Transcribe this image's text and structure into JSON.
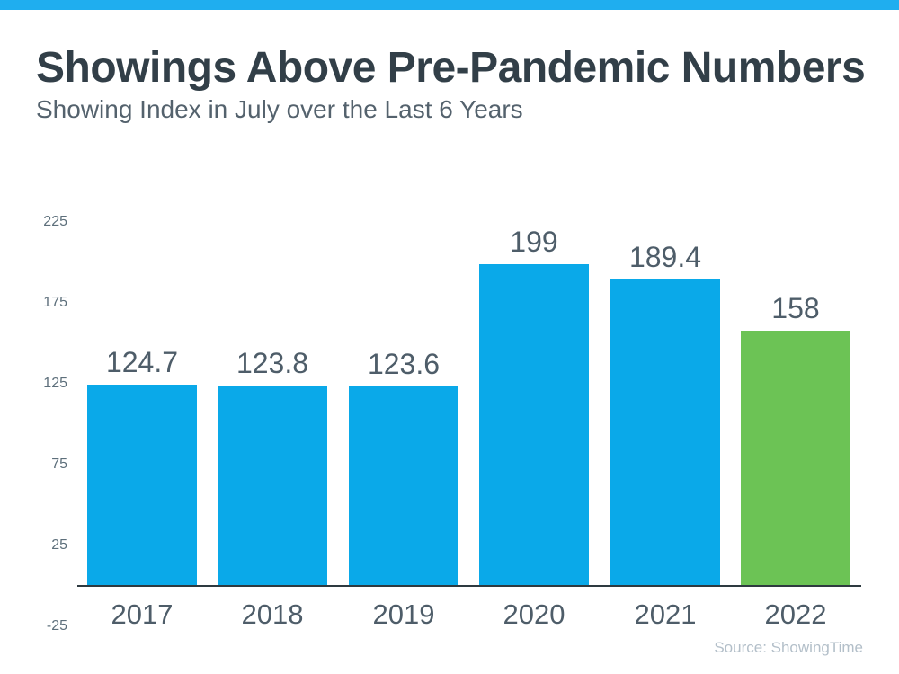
{
  "page": {
    "title": "Showings Above Pre-Pandemic Numbers",
    "subtitle": "Showing Index in July over the Last 6 Years",
    "source": "Source: ShowingTime"
  },
  "colors": {
    "top_accent": "#1FAEEF",
    "bar_blue": "#0AA9E9",
    "bar_green": "#6CC355",
    "axis_line": "#2E3A40",
    "title_text": "#323F48",
    "subtitle_text": "#54626D",
    "tick_text": "#5D6F7B",
    "label_text": "#4E5D69",
    "source_text": "#B3BFC9"
  },
  "chart_data": {
    "type": "bar",
    "title": "Showings Above Pre-Pandemic Numbers",
    "subtitle": "Showing Index in July over the Last 6 Years",
    "categories": [
      "2017",
      "2018",
      "2019",
      "2020",
      "2021",
      "2022"
    ],
    "values": [
      124.7,
      123.8,
      123.6,
      199,
      189.4,
      158
    ],
    "bar_colors": [
      "#0AA9E9",
      "#0AA9E9",
      "#0AA9E9",
      "#0AA9E9",
      "#0AA9E9",
      "#6CC355"
    ],
    "y_ticks": [
      225,
      175,
      125,
      75,
      25,
      -25
    ],
    "ylim": [
      -25,
      225
    ],
    "xlabel": "",
    "ylabel": "",
    "grid": false,
    "legend": false,
    "source": "Source: ShowingTime"
  }
}
